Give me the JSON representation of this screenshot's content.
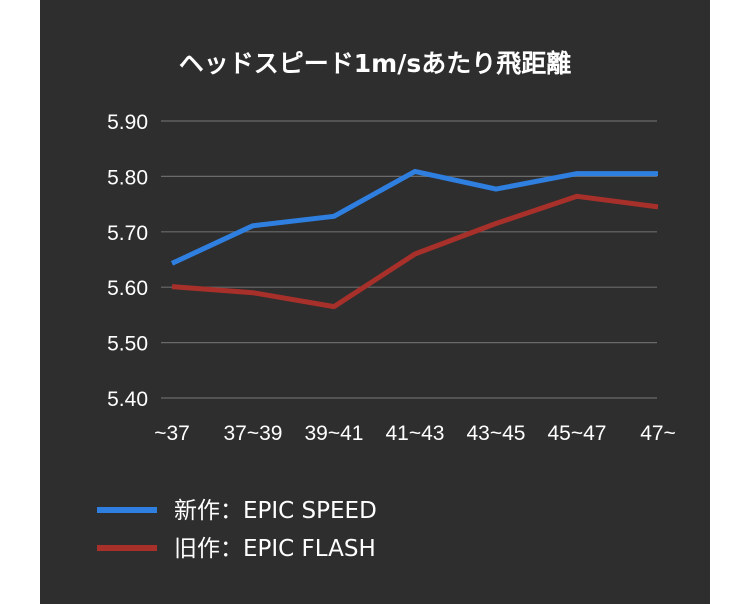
{
  "chart_data": {
    "type": "line",
    "title": "ヘッドスピード1m/sあたり飛距離",
    "categories": [
      "~37",
      "37~39",
      "39~41",
      "41~43",
      "43~45",
      "45~47",
      "47~"
    ],
    "ylim": [
      5.4,
      5.9
    ],
    "yticks": [
      "5.90",
      "5.80",
      "5.70",
      "5.60",
      "5.50",
      "5.40"
    ],
    "grid": true,
    "legend_position": "bottom-left",
    "series": [
      {
        "name": "新作：EPIC SPEED",
        "color": "#2f7fe0",
        "values": [
          5.643,
          5.711,
          5.728,
          5.809,
          5.777,
          5.805,
          5.805
        ]
      },
      {
        "name": "旧作：EPIC FLASH",
        "color": "#a8302a",
        "values": [
          5.601,
          5.59,
          5.565,
          5.66,
          5.715,
          5.764,
          5.745
        ]
      }
    ]
  }
}
